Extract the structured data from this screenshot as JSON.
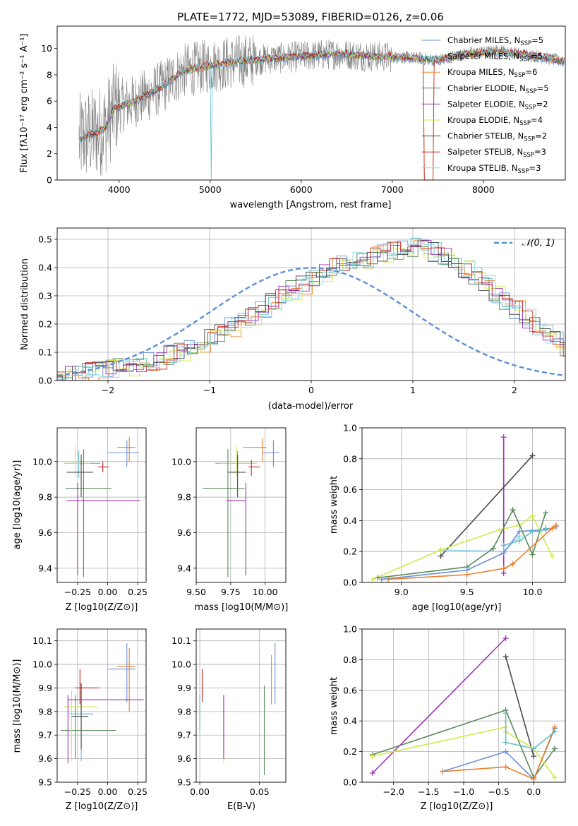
{
  "chart_data": [
    {
      "type": "line",
      "title": "PLATE=1772, MJD=53089, FIBERID=0126, z=0.06",
      "xlabel": "wavelength [Angstrom, rest frame]",
      "ylabel": "Flux [fλ10⁻¹⁷ erg cm⁻² s⁻¹ A⁻¹]",
      "xlim": [
        3320,
        8900
      ],
      "ylim": [
        0,
        11.7
      ],
      "xticks": [
        4000,
        5000,
        6000,
        7000,
        8000
      ],
      "yticks": [
        0,
        2,
        4,
        6,
        8,
        10
      ],
      "grid": false,
      "legend": "right",
      "data_color": "#808080",
      "series": [
        {
          "name": "Chabrier MILES, N_SSP=5",
          "label": "Chabrier MILES, N",
          "sub": "SSP",
          "n": "=5",
          "color": "#6a8fd8"
        },
        {
          "name": "Salpeter MILES, N_SSP=5",
          "label": "Salpeter MILES, N",
          "sub": "SSP",
          "n": "=5",
          "color": "#64bfc8"
        },
        {
          "name": "Kroupa MILES, N_SSP=6",
          "label": "Kroupa MILES, N",
          "sub": "SSP",
          "n": "=6",
          "color": "#e8822a"
        },
        {
          "name": "Chabrier ELODIE, N_SSP=5",
          "label": "Chabrier ELODIE, N",
          "sub": "SSP",
          "n": "=5",
          "color": "#5a8a5a"
        },
        {
          "name": "Salpeter ELODIE, N_SSP=2",
          "label": "Salpeter ELODIE, N",
          "sub": "SSP",
          "n": "=2",
          "color": "#9b30b5"
        },
        {
          "name": "Kroupa ELODIE, N_SSP=4",
          "label": "Kroupa ELODIE, N",
          "sub": "SSP",
          "n": "=4",
          "color": "#d4e84a"
        },
        {
          "name": "Chabrier STELIB, N_SSP=2",
          "label": "Chabrier STELIB, N",
          "sub": "SSP",
          "n": "=2",
          "color": "#4a4a4a"
        },
        {
          "name": "Salpeter STELIB, N_SSP=3",
          "label": "Salpeter STELIB, N",
          "sub": "SSP",
          "n": "=3",
          "color": "#c8201e"
        },
        {
          "name": "Kroupa STELIB, N_SSP=3",
          "label": "Kroupa STELIB, N",
          "sub": "SSP",
          "n": "=3",
          "color": "#8fd8e8"
        }
      ],
      "continuum": [
        [
          3560,
          3.0
        ],
        [
          3650,
          3.4
        ],
        [
          3750,
          3.6
        ],
        [
          3850,
          4.0
        ],
        [
          3950,
          5.5
        ],
        [
          4100,
          5.8
        ],
        [
          4300,
          6.4
        ],
        [
          4500,
          7.2
        ],
        [
          4700,
          8.3
        ],
        [
          5000,
          8.7
        ],
        [
          5300,
          9.0
        ],
        [
          5600,
          9.2
        ],
        [
          6000,
          9.4
        ],
        [
          6400,
          9.6
        ],
        [
          6800,
          9.4
        ],
        [
          7200,
          9.3
        ],
        [
          7500,
          9.1
        ],
        [
          7800,
          9.6
        ],
        [
          8200,
          9.8
        ],
        [
          8600,
          9.4
        ],
        [
          8890,
          9.0
        ]
      ]
    },
    {
      "type": "bar",
      "xlabel": "(data-model)/error",
      "ylabel": "Normed distribution",
      "xlim": [
        -2.5,
        2.5
      ],
      "ylim": [
        0,
        0.54
      ],
      "xticks": [
        -2,
        -1,
        0,
        1,
        2
      ],
      "yticks": [
        0.0,
        0.1,
        0.2,
        0.3,
        0.4,
        0.5
      ],
      "grid": true,
      "legend": "top-right",
      "reference": {
        "name": "𝒩(0, 1)",
        "color": "#5b8fd6",
        "style": "dashed"
      },
      "bin_width": 0.1,
      "base": [
        0.02,
        0.02,
        0.025,
        0.03,
        0.035,
        0.04,
        0.045,
        0.05,
        0.06,
        0.065,
        0.075,
        0.09,
        0.1,
        0.115,
        0.13,
        0.15,
        0.17,
        0.19,
        0.21,
        0.23,
        0.255,
        0.275,
        0.3,
        0.32,
        0.34,
        0.36,
        0.38,
        0.4,
        0.41,
        0.42,
        0.43,
        0.44,
        0.45,
        0.46,
        0.47,
        0.47,
        0.465,
        0.455,
        0.44,
        0.42,
        0.395,
        0.37,
        0.34,
        0.31,
        0.28,
        0.25,
        0.22,
        0.19,
        0.165,
        0.14,
        0.12,
        0.1,
        0.085,
        0.07,
        0.06,
        0.05,
        0.045,
        0.04,
        0.035,
        0.03,
        0.025,
        0.02,
        0.02
      ]
    },
    {
      "type": "scatter",
      "xlabel": "Z [log10(Z/Z⊙)]",
      "ylabel": "age  [log10(age/yr)]",
      "xlim": [
        -0.42,
        0.32
      ],
      "ylim": [
        9.32,
        10.19
      ],
      "xticks": [
        -0.25,
        0.0,
        0.25
      ],
      "yticks": [
        9.4,
        9.6,
        9.8,
        10.0
      ],
      "grid": true,
      "crosses": [
        {
          "x": 0.18,
          "y": 10.08,
          "xerr": [
            0.1,
            0.05
          ],
          "yerr": [
            0.08,
            0.06
          ],
          "s": 2
        },
        {
          "x": 0.16,
          "y": 10.05,
          "xerr": [
            0.16,
            0.1
          ],
          "yerr": [
            0.08,
            0.07
          ],
          "s": 0
        },
        {
          "x": 0.2,
          "y": 10.02,
          "xerr": [
            0.16,
            0.06
          ],
          "yerr": [
            0.1,
            0.12
          ],
          "s": 9
        },
        {
          "x": -0.24,
          "y": 9.99,
          "xerr": [
            0.12,
            0.18
          ],
          "yerr": [
            0.08,
            0.07
          ],
          "s": 1
        },
        {
          "x": -0.27,
          "y": 9.99,
          "xerr": [
            0.08,
            0.12
          ],
          "yerr": [
            0.07,
            0.1
          ],
          "s": 5
        },
        {
          "x": -0.04,
          "y": 9.97,
          "xerr": [
            0.04,
            0.05
          ],
          "yerr": [
            0.03,
            0.03
          ],
          "s": 7
        },
        {
          "x": -0.22,
          "y": 9.94,
          "xerr": [
            0.12,
            0.1
          ],
          "yerr": [
            0.14,
            0.1
          ],
          "s": 6
        },
        {
          "x": -0.2,
          "y": 9.85,
          "xerr": [
            0.15,
            0.23
          ],
          "yerr": [
            0.5,
            0.22
          ],
          "s": 3
        },
        {
          "x": -0.25,
          "y": 9.78,
          "xerr": [
            0.09,
            0.52
          ],
          "yerr": [
            0.42,
            0.1
          ],
          "s": 4
        }
      ]
    },
    {
      "type": "scatter",
      "xlabel": "mass [log10(M/M⊙)]",
      "ylabel": "",
      "xlim": [
        9.5,
        10.15
      ],
      "ylim": [
        9.32,
        10.19
      ],
      "xticks": [
        9.5,
        9.75,
        10.0
      ],
      "yticks": [
        9.4,
        9.6,
        9.8,
        10.0
      ],
      "grid": true,
      "crosses": [
        {
          "x": 9.98,
          "y": 10.08,
          "xerr": [
            0.14,
            0.03
          ],
          "yerr": [
            0.08,
            0.05
          ],
          "s": 2
        },
        {
          "x": 10.06,
          "y": 10.05,
          "xerr": [
            0.08,
            0.04
          ],
          "yerr": [
            0.08,
            0.07
          ],
          "s": 0
        },
        {
          "x": 10.0,
          "y": 10.02,
          "xerr": [
            0.12,
            0.14
          ],
          "yerr": [
            0.1,
            0.12
          ],
          "s": 9
        },
        {
          "x": 9.8,
          "y": 9.99,
          "xerr": [
            0.16,
            0.12
          ],
          "yerr": [
            0.08,
            0.07
          ],
          "s": 1
        },
        {
          "x": 9.79,
          "y": 9.99,
          "xerr": [
            0.12,
            0.15
          ],
          "yerr": [
            0.07,
            0.1
          ],
          "s": 5
        },
        {
          "x": 9.9,
          "y": 9.97,
          "xerr": [
            0.02,
            0.06
          ],
          "yerr": [
            0.05,
            0.04
          ],
          "s": 7
        },
        {
          "x": 9.8,
          "y": 9.94,
          "xerr": [
            0.07,
            0.06
          ],
          "yerr": [
            0.14,
            0.1
          ],
          "s": 6
        },
        {
          "x": 9.73,
          "y": 9.85,
          "xerr": [
            0.18,
            0.12
          ],
          "yerr": [
            0.5,
            0.22
          ],
          "s": 3
        },
        {
          "x": 9.86,
          "y": 9.78,
          "xerr": [
            0.14,
            0.0
          ],
          "yerr": [
            0.42,
            0.1
          ],
          "s": 4
        }
      ]
    },
    {
      "type": "line",
      "xlabel": "age  [log10(age/yr)]",
      "ylabel": "mass weight",
      "xlim": [
        8.7,
        10.25
      ],
      "ylim": [
        0,
        1.0
      ],
      "xticks": [
        9.0,
        9.5,
        10.0
      ],
      "yticks": [
        0.0,
        0.2,
        0.4,
        0.6,
        0.8,
        1.0
      ],
      "grid": true,
      "series": [
        {
          "s": 4,
          "x": [
            9.78,
            9.78
          ],
          "y": [
            0.94,
            0.06
          ]
        },
        {
          "s": 6,
          "x": [
            9.3,
            10.0
          ],
          "y": [
            0.17,
            0.82
          ]
        },
        {
          "s": 8,
          "x": [
            9.3,
            9.78,
            9.9
          ],
          "y": [
            0.21,
            0.2,
            0.3
          ]
        },
        {
          "s": 9,
          "x": [
            9.78,
            10.0,
            10.1,
            10.13,
            10.13
          ],
          "y": [
            0.2,
            0.06,
            0.62,
            0.33,
            0.44
          ]
        },
        {
          "s": 5,
          "x": [
            8.78,
            9.3,
            9.75,
            9.9,
            10.0,
            10.15
          ],
          "y": [
            0.02,
            0.21,
            0.34,
            0.37,
            0.43,
            0.17
          ]
        },
        {
          "s": 3,
          "x": [
            8.82,
            9.5,
            9.7,
            9.85,
            10.0,
            10.1
          ],
          "y": [
            0.03,
            0.1,
            0.22,
            0.47,
            0.18,
            0.45
          ]
        },
        {
          "s": 0,
          "x": [
            8.85,
            9.5,
            9.78,
            9.9,
            10.1,
            10.18
          ],
          "y": [
            0.02,
            0.08,
            0.19,
            0.33,
            0.34,
            0.36
          ]
        },
        {
          "s": 1,
          "x": [
            9.78,
            9.9,
            10.0,
            10.05,
            10.1
          ],
          "y": [
            0.24,
            0.27,
            0.33,
            0.33,
            0.35
          ]
        },
        {
          "s": 2,
          "x": [
            8.9,
            9.5,
            9.78,
            9.85,
            10.15,
            10.18
          ],
          "y": [
            0.02,
            0.05,
            0.09,
            0.12,
            0.35,
            0.37
          ]
        }
      ]
    },
    {
      "type": "scatter",
      "xlabel": "Z [log10(Z/Z⊙)]",
      "ylabel": "mass [log10(M/M⊙)]",
      "xlim": [
        -0.42,
        0.32
      ],
      "ylim": [
        9.5,
        10.15
      ],
      "xticks": [
        -0.25,
        0.0,
        0.25
      ],
      "yticks": [
        9.5,
        9.6,
        9.7,
        9.8,
        9.9,
        10.0,
        10.1
      ],
      "grid": true,
      "crosses": [
        {
          "x": 0.18,
          "y": 9.99,
          "xerr": [
            0.1,
            0.05
          ],
          "yerr": [
            0.19,
            0.08
          ],
          "s": 2
        },
        {
          "x": 0.16,
          "y": 9.98,
          "xerr": [
            0.16,
            0.07
          ],
          "yerr": [
            0.14,
            0.11
          ],
          "s": 0
        },
        {
          "x": 0.2,
          "y": 10.06,
          "xerr": [
            0.14,
            0.06
          ],
          "yerr": [
            0.19,
            0.07
          ],
          "s": 9
        },
        {
          "x": -0.22,
          "y": 9.79,
          "xerr": [
            0.1,
            0.1
          ],
          "yerr": [
            0.2,
            0.12
          ],
          "s": 1
        },
        {
          "x": -0.27,
          "y": 9.72,
          "xerr": [
            0.12,
            0.34
          ],
          "yerr": [
            0.12,
            0.15
          ],
          "s": 3
        },
        {
          "x": -0.3,
          "y": 9.82,
          "xerr": [
            0.06,
            0.22
          ],
          "yerr": [
            0.23,
            0.07
          ],
          "s": 5
        },
        {
          "x": -0.22,
          "y": 9.78,
          "xerr": [
            0.08,
            0.06
          ],
          "yerr": [
            0.14,
            0.14
          ],
          "s": 6
        },
        {
          "x": -0.23,
          "y": 9.9,
          "xerr": [
            0.04,
            0.16
          ],
          "yerr": [
            0.07,
            0.08
          ],
          "s": 7
        },
        {
          "x": -0.33,
          "y": 9.85,
          "xerr": [
            0.0,
            0.63
          ],
          "yerr": [
            0.27,
            0.02
          ],
          "s": 4
        }
      ]
    },
    {
      "type": "scatter",
      "xlabel": "E(B-V)",
      "ylabel": "",
      "xlim": [
        -0.003,
        0.072
      ],
      "ylim": [
        9.5,
        10.15
      ],
      "xticks": [
        0.0,
        0.05
      ],
      "yticks": [
        9.5,
        9.6,
        9.7,
        9.8,
        9.9,
        10.0,
        10.1
      ],
      "grid": true,
      "crosses": [
        {
          "x": 0.002,
          "y": 9.92,
          "xerr": [
            0,
            0
          ],
          "yerr": [
            0.08,
            0.06
          ],
          "s": 7
        },
        {
          "x": 0.0,
          "y": 9.82,
          "xerr": [
            0,
            0
          ],
          "yerr": [
            0.1,
            0.06
          ],
          "s": 8
        },
        {
          "x": 0.0,
          "y": 9.8,
          "xerr": [
            0,
            0
          ],
          "yerr": [
            0.09,
            0.07
          ],
          "s": 1
        },
        {
          "x": 0.02,
          "y": 9.72,
          "xerr": [
            0,
            0
          ],
          "yerr": [
            0.14,
            0.15
          ],
          "s": 5
        },
        {
          "x": 0.02,
          "y": 9.8,
          "xerr": [
            0,
            0
          ],
          "yerr": [
            0.2,
            0.07
          ],
          "s": 4
        },
        {
          "x": 0.054,
          "y": 9.72,
          "xerr": [
            0,
            0
          ],
          "yerr": [
            0.19,
            0.19
          ],
          "s": 3
        },
        {
          "x": 0.06,
          "y": 9.98,
          "xerr": [
            0,
            0
          ],
          "yerr": [
            0.15,
            0.06
          ],
          "s": 2
        },
        {
          "x": 0.063,
          "y": 9.95,
          "xerr": [
            0,
            0
          ],
          "yerr": [
            0.12,
            0.14
          ],
          "s": 0
        },
        {
          "x": 0.07,
          "y": 10.0,
          "xerr": [
            0,
            0
          ],
          "yerr": [
            0.13,
            0.13
          ],
          "s": 9
        }
      ]
    },
    {
      "type": "line",
      "xlabel": "Z [log10(Z/Z⊙)]",
      "ylabel": "mass weight",
      "xlim": [
        -2.45,
        0.45
      ],
      "ylim": [
        0,
        1.0
      ],
      "xticks": [
        -2.0,
        -1.5,
        -1.0,
        -0.5,
        0.0
      ],
      "yticks": [
        0.0,
        0.2,
        0.4,
        0.6,
        0.8,
        1.0
      ],
      "grid": true,
      "series": [
        {
          "s": 4,
          "x": [
            -2.3,
            -0.4
          ],
          "y": [
            0.06,
            0.94
          ]
        },
        {
          "s": 6,
          "x": [
            -0.4,
            0.0
          ],
          "y": [
            0.82,
            0.17
          ]
        },
        {
          "s": 3,
          "x": [
            -2.3,
            -0.4,
            0.0,
            0.3,
            0.3
          ],
          "y": [
            0.18,
            0.47,
            0.03,
            0.22,
            0.22
          ]
        },
        {
          "s": 5,
          "x": [
            -2.3,
            -0.4,
            -0.4,
            0.0,
            0.3
          ],
          "y": [
            0.17,
            0.36,
            0.33,
            0.22,
            0.03
          ]
        },
        {
          "s": 9,
          "x": [
            -1.3,
            -0.4,
            0.0,
            0.3,
            0.3
          ],
          "y": [
            0.12,
            0.2,
            0.02,
            0.62,
            0.34
          ]
        },
        {
          "s": 0,
          "x": [
            -1.3,
            -0.4,
            0.0,
            0.3
          ],
          "y": [
            0.07,
            0.2,
            0.02,
            0.35
          ]
        },
        {
          "s": 2,
          "x": [
            -1.3,
            -0.4,
            0.0,
            0.3
          ],
          "y": [
            0.07,
            0.1,
            0.02,
            0.36
          ]
        },
        {
          "s": 1,
          "x": [
            -0.4,
            -0.4,
            0.0,
            0.3
          ],
          "y": [
            0.45,
            0.26,
            0.22,
            0.33
          ]
        }
      ]
    }
  ]
}
